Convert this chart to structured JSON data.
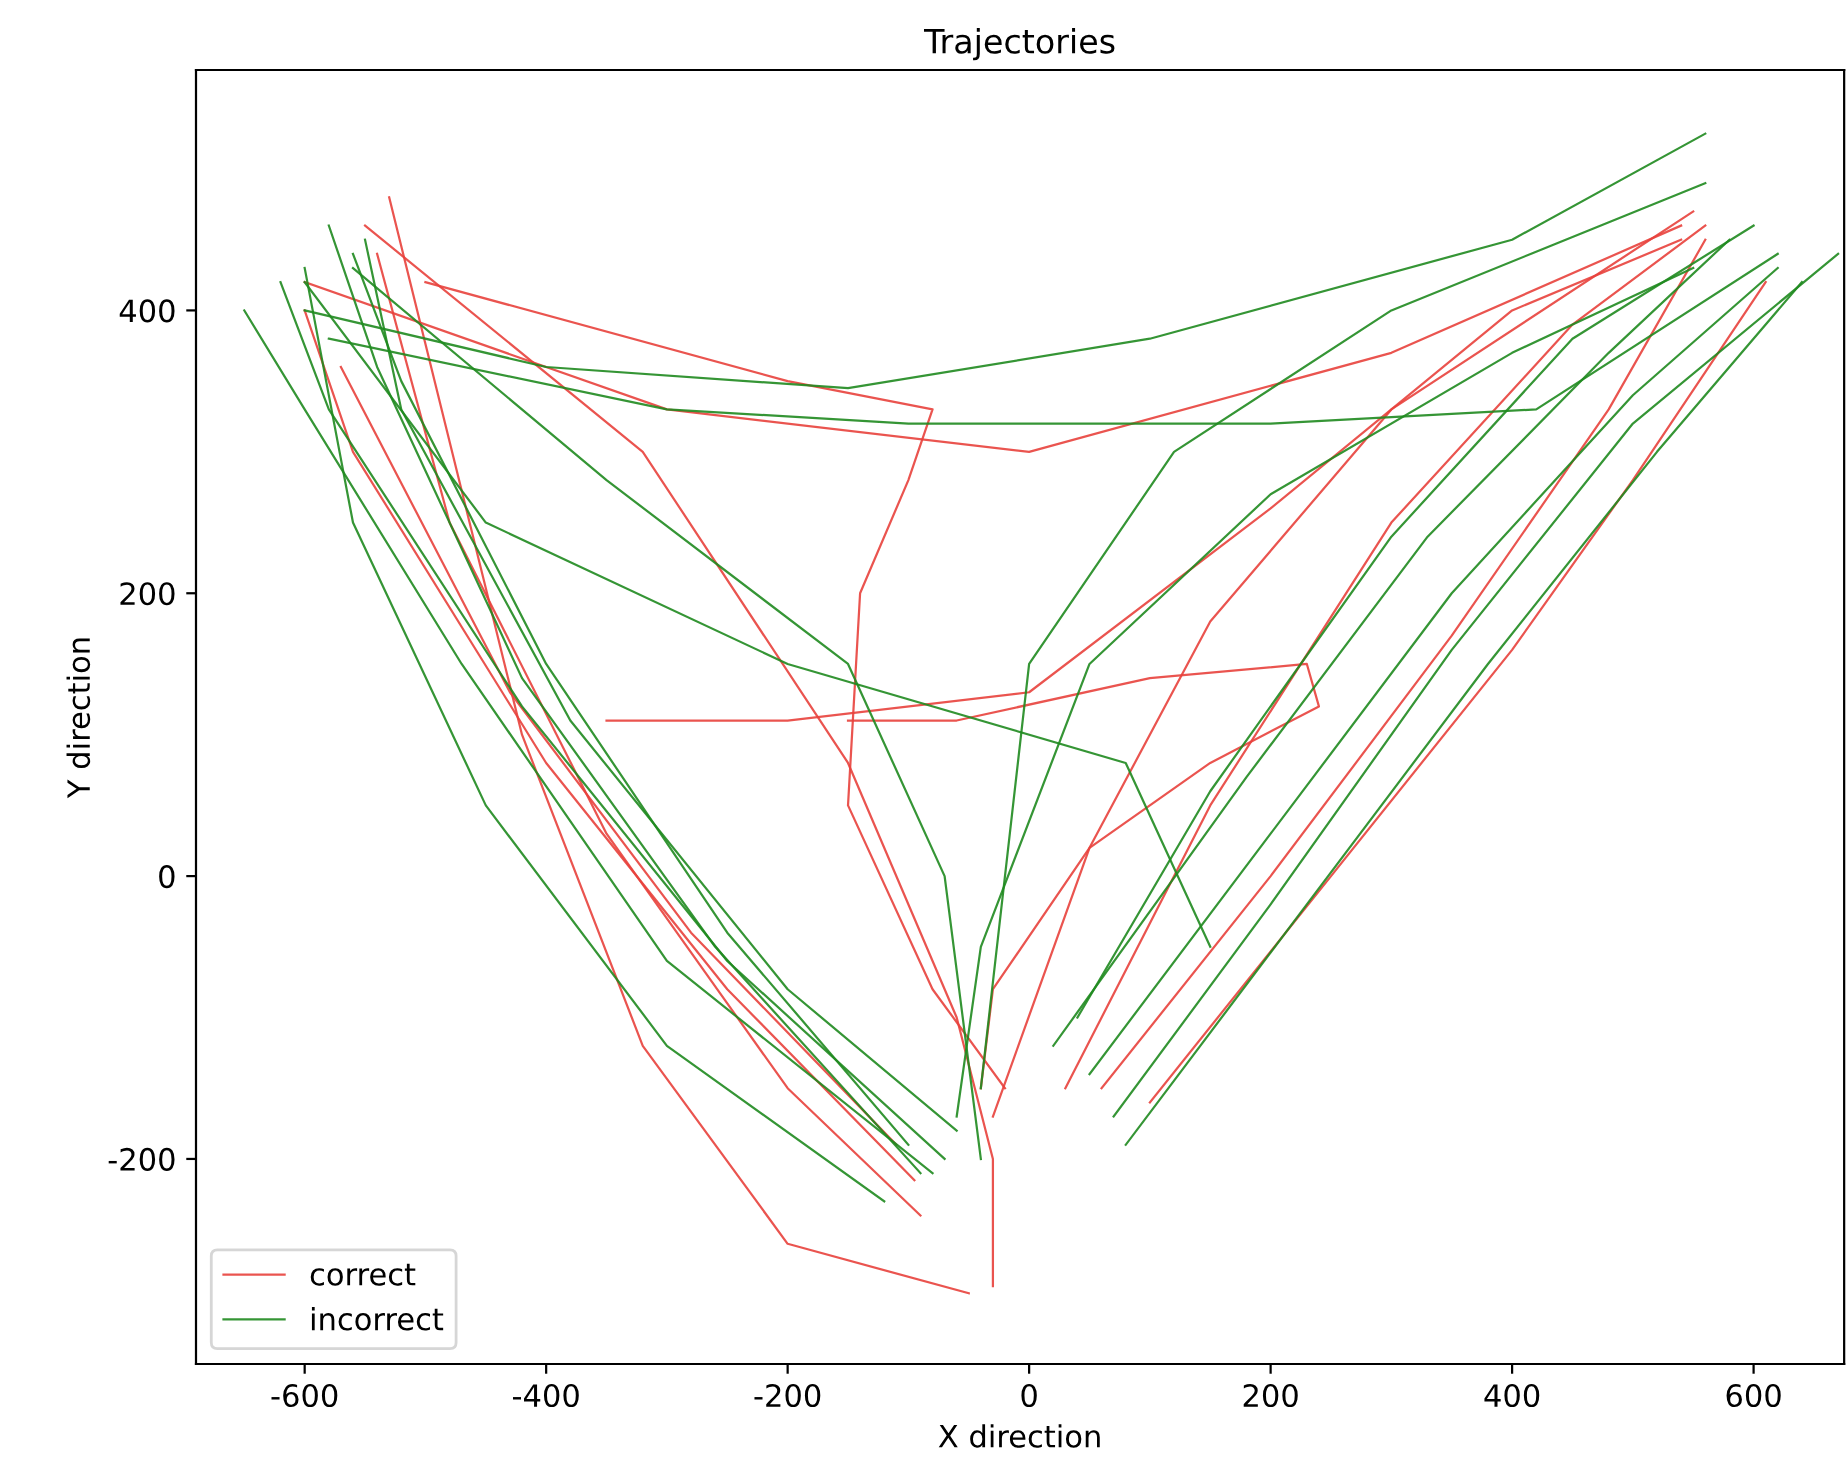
{
  "chart_data": {
    "type": "line",
    "title": "Trajectories",
    "xlabel": "X direction",
    "ylabel": "Y direction",
    "xlim": [
      -690,
      675
    ],
    "ylim": [
      -345,
      570
    ],
    "xticks": [
      -600,
      -400,
      -200,
      0,
      200,
      400,
      600
    ],
    "yticks": [
      -200,
      0,
      200,
      400
    ],
    "grid": false,
    "legend": "bottom left",
    "marker": "none",
    "line_style": "solid",
    "series": [
      {
        "name": "correct",
        "color": "#e8413c",
        "x": [
          -95,
          -250,
          -400,
          -560,
          -600
        ],
        "values": [
          -215,
          -80,
          80,
          300,
          400
        ]
      },
      {
        "color": "#e8413c",
        "x": [
          -110,
          -280,
          -430,
          -570
        ],
        "values": [
          -190,
          -40,
          130,
          360
        ]
      },
      {
        "color": "#e8413c",
        "x": [
          -90,
          -200,
          -350,
          -480,
          -540
        ],
        "values": [
          -240,
          -150,
          30,
          250,
          440
        ]
      },
      {
        "color": "#e8413c",
        "x": [
          -50,
          -200,
          -320,
          -420,
          -530
        ],
        "values": [
          -295,
          -260,
          -120,
          100,
          480
        ]
      },
      {
        "color": "#e8413c",
        "x": [
          -30,
          -30,
          -60,
          -150,
          -320,
          -550
        ],
        "values": [
          -290,
          -200,
          -100,
          80,
          300,
          460
        ]
      },
      {
        "color": "#e8413c",
        "x": [
          -20,
          -80,
          -150,
          -140,
          -100,
          -80,
          -200,
          -500
        ],
        "values": [
          -150,
          -80,
          50,
          200,
          280,
          330,
          350,
          420
        ]
      },
      {
        "color": "#e8413c",
        "x": [
          60,
          200,
          350,
          480,
          560
        ],
        "values": [
          -150,
          0,
          170,
          330,
          450
        ]
      },
      {
        "color": "#e8413c",
        "x": [
          100,
          250,
          400,
          500,
          610
        ],
        "values": [
          -160,
          0,
          160,
          280,
          420
        ]
      },
      {
        "color": "#e8413c",
        "x": [
          30,
          150,
          300,
          450,
          560
        ],
        "values": [
          -150,
          50,
          250,
          390,
          460
        ]
      },
      {
        "color": "#e8413c",
        "x": [
          -30,
          50,
          150,
          300,
          550
        ],
        "values": [
          -170,
          20,
          180,
          330,
          470
        ]
      },
      {
        "color": "#e8413c",
        "x": [
          -150,
          -60,
          100,
          230,
          240,
          150,
          50,
          -30,
          -40
        ],
        "values": [
          110,
          110,
          140,
          150,
          120,
          80,
          20,
          -80,
          -150
        ]
      },
      {
        "color": "#e8413c",
        "x": [
          -350,
          -200,
          0,
          200,
          400,
          540
        ],
        "values": [
          110,
          110,
          130,
          260,
          400,
          450
        ]
      },
      {
        "color": "#e8413c",
        "x": [
          -600,
          -300,
          0,
          300,
          540
        ],
        "values": [
          420,
          330,
          300,
          370,
          460
        ]
      },
      {
        "name": "incorrect",
        "color": "#1f8a1f",
        "x": [
          -70,
          -250,
          -420,
          -580,
          -620
        ],
        "values": [
          -200,
          -60,
          120,
          330,
          420
        ]
      },
      {
        "color": "#1f8a1f",
        "x": [
          -80,
          -300,
          -470,
          -600,
          -650
        ],
        "values": [
          -210,
          -60,
          150,
          330,
          400
        ]
      },
      {
        "color": "#1f8a1f",
        "x": [
          -120,
          -300,
          -450,
          -560,
          -600
        ],
        "values": [
          -230,
          -120,
          50,
          250,
          430
        ]
      },
      {
        "color": "#1f8a1f",
        "x": [
          -60,
          -200,
          -380,
          -520,
          -550
        ],
        "values": [
          -180,
          -80,
          110,
          330,
          450
        ]
      },
      {
        "color": "#1f8a1f",
        "x": [
          -90,
          -260,
          -420,
          -540,
          -580
        ],
        "values": [
          -210,
          -50,
          140,
          360,
          460
        ]
      },
      {
        "color": "#1f8a1f",
        "x": [
          -100,
          -250,
          -400,
          -520,
          -560
        ],
        "values": [
          -190,
          -40,
          150,
          350,
          440
        ]
      },
      {
        "color": "#1f8a1f",
        "x": [
          -40,
          -70,
          -150,
          -350,
          -560
        ],
        "values": [
          -200,
          0,
          150,
          280,
          430
        ]
      },
      {
        "color": "#1f8a1f",
        "x": [
          -600,
          -400,
          -150,
          100,
          400,
          560
        ],
        "values": [
          400,
          360,
          345,
          380,
          450,
          525
        ]
      },
      {
        "color": "#1f8a1f",
        "x": [
          -580,
          -300,
          -100,
          200,
          420,
          620
        ],
        "values": [
          380,
          330,
          320,
          320,
          330,
          440
        ]
      },
      {
        "color": "#1f8a1f",
        "x": [
          -600,
          -450,
          -200,
          80,
          150
        ],
        "values": [
          420,
          250,
          150,
          80,
          -50
        ]
      },
      {
        "color": "#1f8a1f",
        "x": [
          20,
          180,
          330,
          480,
          580
        ],
        "values": [
          -120,
          70,
          240,
          370,
          450
        ]
      },
      {
        "color": "#1f8a1f",
        "x": [
          50,
          200,
          350,
          500,
          620
        ],
        "values": [
          -140,
          30,
          200,
          340,
          430
        ]
      },
      {
        "color": "#1f8a1f",
        "x": [
          80,
          230,
          380,
          520,
          640
        ],
        "values": [
          -190,
          -20,
          150,
          300,
          420
        ]
      },
      {
        "color": "#1f8a1f",
        "x": [
          40,
          150,
          300,
          450,
          600
        ],
        "values": [
          -100,
          60,
          240,
          380,
          460
        ]
      },
      {
        "color": "#1f8a1f",
        "x": [
          -40,
          0,
          120,
          300,
          560
        ],
        "values": [
          -150,
          150,
          300,
          400,
          490
        ]
      },
      {
        "color": "#1f8a1f",
        "x": [
          70,
          200,
          350,
          500,
          670
        ],
        "values": [
          -170,
          -20,
          160,
          320,
          440
        ]
      },
      {
        "color": "#1f8a1f",
        "x": [
          -60,
          -40,
          50,
          200,
          400,
          550
        ],
        "values": [
          -170,
          -50,
          150,
          270,
          370,
          430
        ]
      }
    ]
  }
}
